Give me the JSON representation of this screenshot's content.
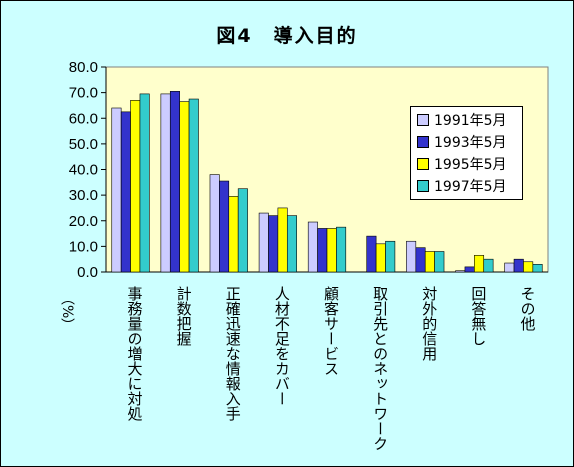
{
  "chart_data": {
    "type": "bar",
    "title": "図4　導入目的",
    "ylabel": "（%）",
    "ylim": [
      0,
      80
    ],
    "yticks": [
      "0.0",
      "10.0",
      "20.0",
      "30.0",
      "40.0",
      "50.0",
      "60.0",
      "70.0",
      "80.0"
    ],
    "categories": [
      "事務量の増大に対処",
      "計数把握",
      "正確迅速な情報入手",
      "人材不足をカバー",
      "顧客サービス",
      "取引先とのネットワーク",
      "対外的信用",
      "回答無し",
      "その他"
    ],
    "series": [
      {
        "name": "1991年5月",
        "color": "#ccccff",
        "values": [
          64.0,
          69.5,
          38.0,
          23.0,
          19.5,
          0,
          12.0,
          0.5,
          3.5
        ]
      },
      {
        "name": "1993年5月",
        "color": "#3333cc",
        "values": [
          62.5,
          70.5,
          35.5,
          22.0,
          17.0,
          14.0,
          9.5,
          2.0,
          5.0
        ]
      },
      {
        "name": "1995年5月",
        "color": "#ffff00",
        "values": [
          67.0,
          66.5,
          29.5,
          25.0,
          17.0,
          11.0,
          8.0,
          6.5,
          4.0
        ]
      },
      {
        "name": "1997年5月",
        "color": "#33cccc",
        "values": [
          69.5,
          67.5,
          32.5,
          22.0,
          17.5,
          12.0,
          8.0,
          5.0,
          3.0
        ]
      }
    ],
    "grid": false,
    "legend_position": "right",
    "plot_background": "#ffffcc",
    "page_background": "#ccffff"
  }
}
